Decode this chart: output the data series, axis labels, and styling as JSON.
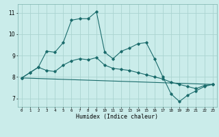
{
  "xlabel": "Humidex (Indice chaleur)",
  "bg_color": "#caecea",
  "grid_color": "#aad4d0",
  "line_color": "#1a6b6b",
  "xlim": [
    -0.5,
    23.5
  ],
  "ylim": [
    6.6,
    11.4
  ],
  "yticks": [
    7,
    8,
    9,
    10,
    11
  ],
  "xticks": [
    0,
    1,
    2,
    3,
    4,
    5,
    6,
    7,
    8,
    9,
    10,
    11,
    12,
    13,
    14,
    15,
    16,
    17,
    18,
    19,
    20,
    21,
    22,
    23
  ],
  "series1_x": [
    0,
    1,
    2,
    3,
    4,
    5,
    6,
    7,
    8,
    9,
    10,
    11,
    12,
    13,
    14,
    15,
    16,
    17,
    18,
    19,
    20,
    21,
    22,
    23
  ],
  "series1_y": [
    7.95,
    8.2,
    8.45,
    9.2,
    9.15,
    9.6,
    10.65,
    10.72,
    10.72,
    11.05,
    9.15,
    8.85,
    9.2,
    9.35,
    9.55,
    9.6,
    8.85,
    8.0,
    7.2,
    6.85,
    7.15,
    7.35,
    7.55,
    7.65
  ],
  "series2_x": [
    0,
    1,
    2,
    3,
    4,
    5,
    6,
    7,
    8,
    9,
    10,
    11,
    12,
    13,
    14,
    15,
    16,
    17,
    18,
    19,
    20,
    21,
    22,
    23
  ],
  "series2_y": [
    7.95,
    8.2,
    8.45,
    8.3,
    8.25,
    8.55,
    8.75,
    8.85,
    8.8,
    8.9,
    8.55,
    8.4,
    8.35,
    8.3,
    8.2,
    8.1,
    8.0,
    7.9,
    7.75,
    7.65,
    7.55,
    7.45,
    7.6,
    7.65
  ],
  "series3_x": [
    0,
    23
  ],
  "series3_y": [
    7.95,
    7.65
  ]
}
